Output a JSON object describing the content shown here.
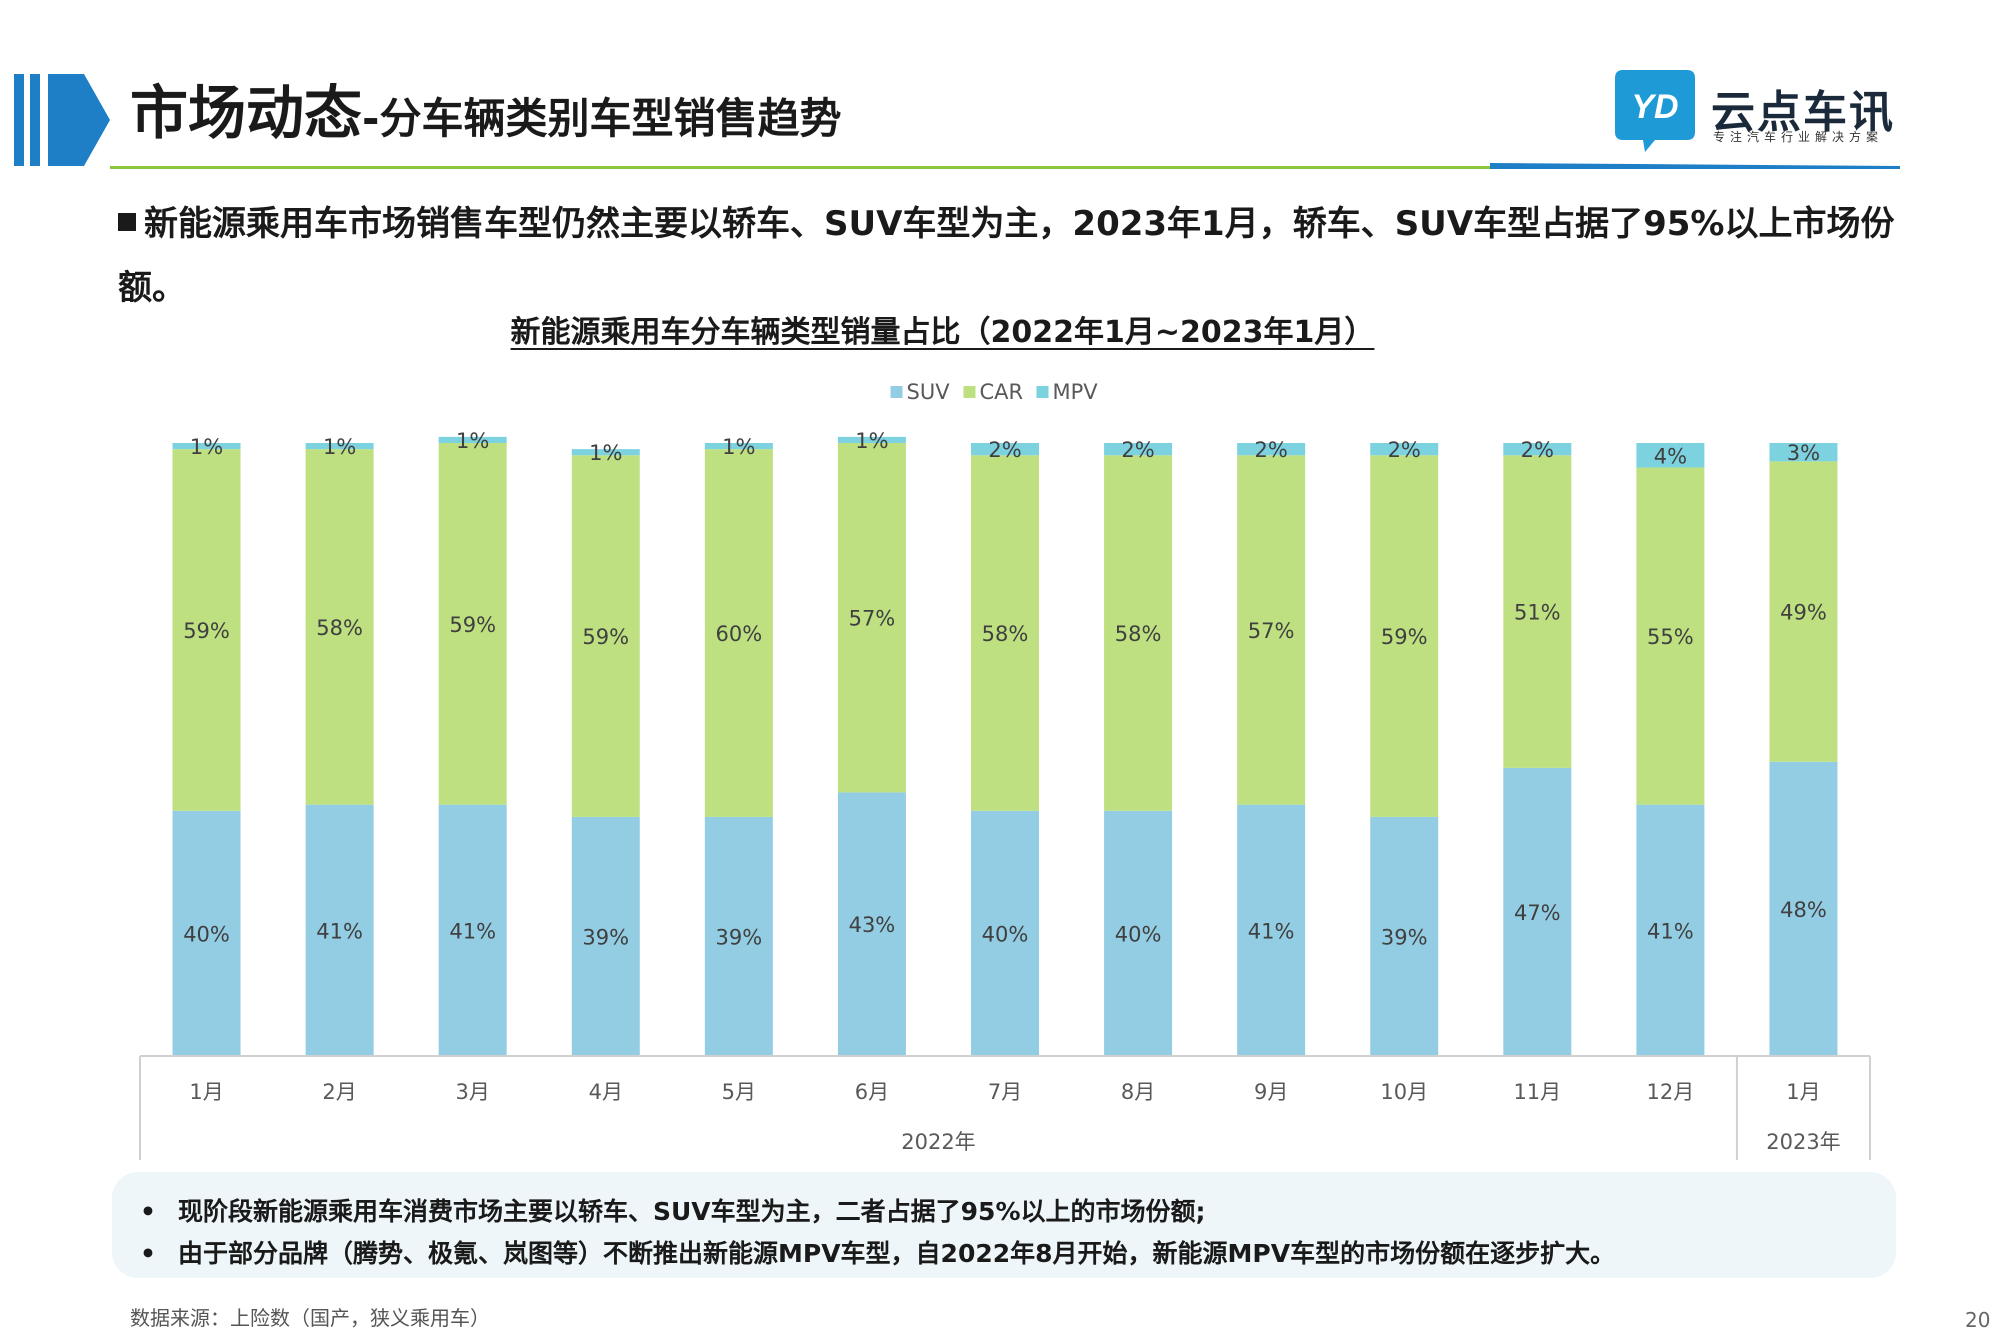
{
  "header": {
    "title_main": "市场动态",
    "title_sub": "-分车辆类别车型销售趋势",
    "logo_name": "云点车讯",
    "logo_tagline": "专注汽车行业解决方案",
    "logo_mark_text": "YD"
  },
  "bullet": {
    "text": "新能源乘用车市场销售车型仍然主要以轿车、SUV车型为主，2023年1月，轿车、SUV车型占据了95%以上市场份额。"
  },
  "chart_data": {
    "type": "bar",
    "stacked": true,
    "percent": true,
    "title": "新能源乘用车分车辆类型销量占比（2022年1月~2023年1月）",
    "categories": [
      "1月",
      "2月",
      "3月",
      "4月",
      "5月",
      "6月",
      "7月",
      "8月",
      "9月",
      "10月",
      "11月",
      "12月",
      "1月"
    ],
    "groups": [
      {
        "label": "2022年",
        "count": 12
      },
      {
        "label": "2023年",
        "count": 1
      }
    ],
    "series": [
      {
        "name": "SUV",
        "color": "#93cde3",
        "values": [
          40,
          41,
          41,
          39,
          39,
          43,
          40,
          40,
          41,
          39,
          47,
          41,
          48
        ]
      },
      {
        "name": "CAR",
        "color": "#bee080",
        "values": [
          59,
          58,
          59,
          59,
          60,
          57,
          58,
          58,
          57,
          59,
          51,
          55,
          49
        ]
      },
      {
        "name": "MPV",
        "color": "#7dd2e0",
        "values": [
          1,
          1,
          1,
          1,
          1,
          1,
          2,
          2,
          2,
          2,
          2,
          4,
          3
        ]
      }
    ],
    "value_suffix": "%",
    "legend_position": "top-center",
    "ylim": [
      0,
      100
    ],
    "grid": false
  },
  "notes": [
    "现阶段新能源乘用车消费市场主要以轿车、SUV车型为主，二者占据了95%以上的市场份额;",
    "由于部分品牌（腾势、极氪、岚图等）不断推出新能源MPV车型，自2022年8月开始，新能源MPV车型的市场份额在逐步扩大。"
  ],
  "note_bullet": "•",
  "source": "数据来源：上险数（国产，狭义乘用车）",
  "page_number": "20"
}
